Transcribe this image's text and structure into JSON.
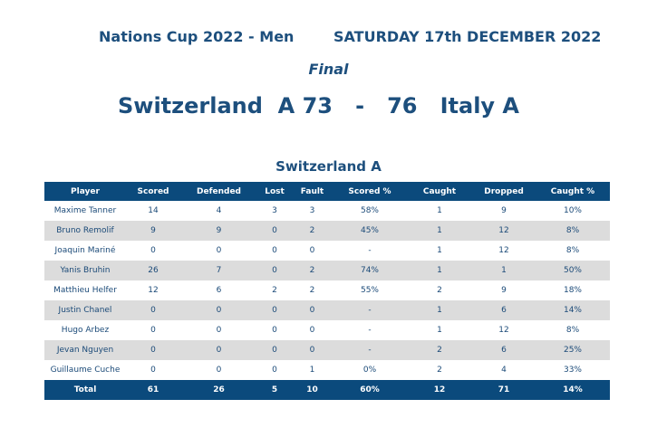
{
  "header": {
    "competition": "Nations Cup 2022 - Men",
    "date": "SATURDAY 17th DECEMBER 2022",
    "round": "Final"
  },
  "match": {
    "home_team": "Switzerland  A",
    "home_score": "73",
    "separator": "-",
    "away_score": "76",
    "away_team": "Italy A"
  },
  "team_table": {
    "title": "Switzerland A",
    "columns": [
      "Player",
      "Scored",
      "Defended",
      "Lost",
      "Fault",
      "Scored %",
      "Caught",
      "Dropped",
      "Caught %"
    ],
    "rows": [
      [
        "Maxime Tanner",
        "14",
        "4",
        "3",
        "3",
        "58%",
        "1",
        "9",
        "10%"
      ],
      [
        "Bruno Remolif",
        "9",
        "9",
        "0",
        "2",
        "45%",
        "1",
        "12",
        "8%"
      ],
      [
        "Joaquin Mariné",
        "0",
        "0",
        "0",
        "0",
        "-",
        "1",
        "12",
        "8%"
      ],
      [
        "Yanis Bruhin",
        "26",
        "7",
        "0",
        "2",
        "74%",
        "1",
        "1",
        "50%"
      ],
      [
        "Matthieu Helfer",
        "12",
        "6",
        "2",
        "2",
        "55%",
        "2",
        "9",
        "18%"
      ],
      [
        "Justin Chanel",
        "0",
        "0",
        "0",
        "0",
        "-",
        "1",
        "6",
        "14%"
      ],
      [
        "Hugo Arbez",
        "0",
        "0",
        "0",
        "0",
        "-",
        "1",
        "12",
        "8%"
      ],
      [
        "Jevan Nguyen",
        "0",
        "0",
        "0",
        "0",
        "-",
        "2",
        "6",
        "25%"
      ],
      [
        "Guillaume Cuche",
        "0",
        "0",
        "0",
        "1",
        "0%",
        "2",
        "4",
        "33%"
      ]
    ],
    "total": [
      "Total",
      "61",
      "26",
      "5",
      "10",
      "60%",
      "12",
      "71",
      "14%"
    ]
  },
  "colors": {
    "header_bg": "#0b4a7c",
    "title_text": "#1d4f7d",
    "stripe": "#dcdcdc"
  }
}
